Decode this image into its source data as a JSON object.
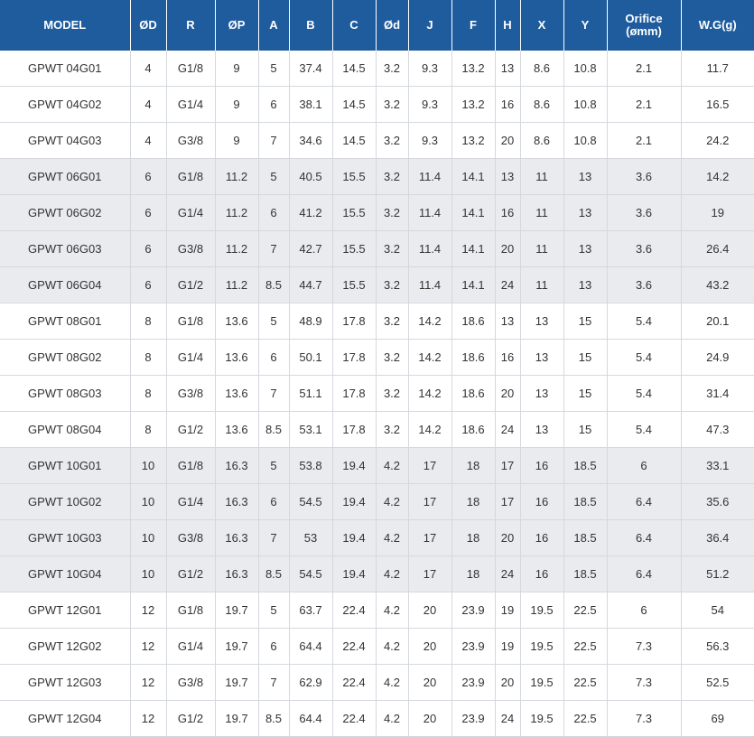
{
  "headers": [
    "MODEL",
    "ØD",
    "R",
    "ØP",
    "A",
    "B",
    "C",
    "Ød",
    "J",
    "F",
    "H",
    "X",
    "Y",
    "Orifice\n(ømm)",
    "W.G(g)"
  ],
  "rows": [
    [
      "GPWT 04G01",
      "4",
      "G1/8",
      "9",
      "5",
      "37.4",
      "14.5",
      "3.2",
      "9.3",
      "13.2",
      "13",
      "8.6",
      "10.8",
      "2.1",
      "11.7"
    ],
    [
      "GPWT 04G02",
      "4",
      "G1/4",
      "9",
      "6",
      "38.1",
      "14.5",
      "3.2",
      "9.3",
      "13.2",
      "16",
      "8.6",
      "10.8",
      "2.1",
      "16.5"
    ],
    [
      "GPWT 04G03",
      "4",
      "G3/8",
      "9",
      "7",
      "34.6",
      "14.5",
      "3.2",
      "9.3",
      "13.2",
      "20",
      "8.6",
      "10.8",
      "2.1",
      "24.2"
    ],
    [
      "GPWT 06G01",
      "6",
      "G1/8",
      "11.2",
      "5",
      "40.5",
      "15.5",
      "3.2",
      "11.4",
      "14.1",
      "13",
      "11",
      "13",
      "3.6",
      "14.2"
    ],
    [
      "GPWT 06G02",
      "6",
      "G1/4",
      "11.2",
      "6",
      "41.2",
      "15.5",
      "3.2",
      "11.4",
      "14.1",
      "16",
      "11",
      "13",
      "3.6",
      "19"
    ],
    [
      "GPWT 06G03",
      "6",
      "G3/8",
      "11.2",
      "7",
      "42.7",
      "15.5",
      "3.2",
      "11.4",
      "14.1",
      "20",
      "11",
      "13",
      "3.6",
      "26.4"
    ],
    [
      "GPWT 06G04",
      "6",
      "G1/2",
      "11.2",
      "8.5",
      "44.7",
      "15.5",
      "3.2",
      "11.4",
      "14.1",
      "24",
      "11",
      "13",
      "3.6",
      "43.2"
    ],
    [
      "GPWT 08G01",
      "8",
      "G1/8",
      "13.6",
      "5",
      "48.9",
      "17.8",
      "3.2",
      "14.2",
      "18.6",
      "13",
      "13",
      "15",
      "5.4",
      "20.1"
    ],
    [
      "GPWT 08G02",
      "8",
      "G1/4",
      "13.6",
      "6",
      "50.1",
      "17.8",
      "3.2",
      "14.2",
      "18.6",
      "16",
      "13",
      "15",
      "5.4",
      "24.9"
    ],
    [
      "GPWT 08G03",
      "8",
      "G3/8",
      "13.6",
      "7",
      "51.1",
      "17.8",
      "3.2",
      "14.2",
      "18.6",
      "20",
      "13",
      "15",
      "5.4",
      "31.4"
    ],
    [
      "GPWT 08G04",
      "8",
      "G1/2",
      "13.6",
      "8.5",
      "53.1",
      "17.8",
      "3.2",
      "14.2",
      "18.6",
      "24",
      "13",
      "15",
      "5.4",
      "47.3"
    ],
    [
      "GPWT 10G01",
      "10",
      "G1/8",
      "16.3",
      "5",
      "53.8",
      "19.4",
      "4.2",
      "17",
      "18",
      "17",
      "16",
      "18.5",
      "6",
      "33.1"
    ],
    [
      "GPWT 10G02",
      "10",
      "G1/4",
      "16.3",
      "6",
      "54.5",
      "19.4",
      "4.2",
      "17",
      "18",
      "17",
      "16",
      "18.5",
      "6.4",
      "35.6"
    ],
    [
      "GPWT 10G03",
      "10",
      "G3/8",
      "16.3",
      "7",
      "53",
      "19.4",
      "4.2",
      "17",
      "18",
      "20",
      "16",
      "18.5",
      "6.4",
      "36.4"
    ],
    [
      "GPWT 10G04",
      "10",
      "G1/2",
      "16.3",
      "8.5",
      "54.5",
      "19.4",
      "4.2",
      "17",
      "18",
      "24",
      "16",
      "18.5",
      "6.4",
      "51.2"
    ],
    [
      "GPWT 12G01",
      "12",
      "G1/8",
      "19.7",
      "5",
      "63.7",
      "22.4",
      "4.2",
      "20",
      "23.9",
      "19",
      "19.5",
      "22.5",
      "6",
      "54"
    ],
    [
      "GPWT 12G02",
      "12",
      "G1/4",
      "19.7",
      "6",
      "64.4",
      "22.4",
      "4.2",
      "20",
      "23.9",
      "19",
      "19.5",
      "22.5",
      "7.3",
      "56.3"
    ],
    [
      "GPWT 12G03",
      "12",
      "G3/8",
      "19.7",
      "7",
      "62.9",
      "22.4",
      "4.2",
      "20",
      "23.9",
      "20",
      "19.5",
      "22.5",
      "7.3",
      "52.5"
    ],
    [
      "GPWT 12G04",
      "12",
      "G1/2",
      "19.7",
      "8.5",
      "64.4",
      "22.4",
      "4.2",
      "20",
      "23.9",
      "24",
      "19.5",
      "22.5",
      "7.3",
      "69"
    ]
  ],
  "row_shading": [
    "plain",
    "plain",
    "plain",
    "shade",
    "shade",
    "shade",
    "shade",
    "plain",
    "plain",
    "plain",
    "plain",
    "shade",
    "shade",
    "shade",
    "shade",
    "plain",
    "plain",
    "plain",
    "plain"
  ],
  "colors": {
    "header_bg": "#1f5c9e",
    "header_text": "#ffffff",
    "shade_row": "#e9ebee",
    "body_text": "#333333"
  }
}
